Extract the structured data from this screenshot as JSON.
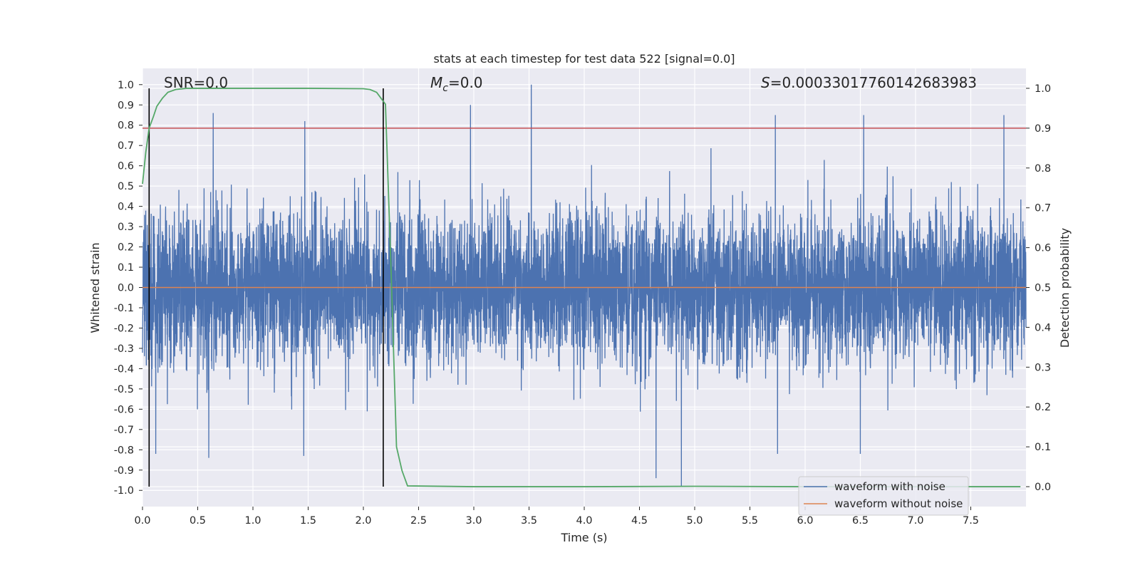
{
  "chart_data": {
    "type": "line",
    "title": "stats at each timestep for test data 522 [signal=0.0]",
    "xlabel": "Time (s)",
    "ylabel": "Whitened strain",
    "y2label": "Detection probability",
    "xlim": [
      0,
      8
    ],
    "ylim": [
      -1.08,
      1.08
    ],
    "y2lim": [
      -0.05,
      1.05
    ],
    "grid": true,
    "legend_position": "bottom-right",
    "x_ticks": [
      "0.0",
      "0.5",
      "1.0",
      "1.5",
      "2.0",
      "2.5",
      "3.0",
      "3.5",
      "4.0",
      "4.5",
      "5.0",
      "5.5",
      "6.0",
      "6.5",
      "7.0",
      "7.5"
    ],
    "y_ticks": [
      "1.0",
      "0.9",
      "0.8",
      "0.7",
      "0.6",
      "0.5",
      "0.4",
      "0.3",
      "0.2",
      "0.1",
      "0.0",
      "-0.1",
      "-0.2",
      "-0.3",
      "-0.4",
      "-0.5",
      "-0.6",
      "-0.7",
      "-0.8",
      "-0.9",
      "-1.0"
    ],
    "y2_ticks": [
      "1.0",
      "0.9",
      "0.8",
      "0.7",
      "0.6",
      "0.5",
      "0.4",
      "0.3",
      "0.2",
      "0.1",
      "0.0"
    ],
    "annotations": {
      "snr": "SNR=0.0",
      "mc_symbol": "M",
      "mc_sub": "c",
      "mc_value": "=0.0",
      "s_symbol": "S",
      "s_value": "=0.00033017760142683983"
    },
    "threshold": {
      "y2": 0.9,
      "color": "#c44e52"
    },
    "vertical_lines": [
      0.06,
      2.18
    ],
    "series": [
      {
        "name": "waveform with noise",
        "color": "#4c72b0",
        "noise_envelope": {
          "typical": 0.3,
          "max": 1.0,
          "min": -0.98
        },
        "spikes": [
          {
            "x": 0.64,
            "y": 0.86
          },
          {
            "x": 1.47,
            "y": 0.82
          },
          {
            "x": 2.97,
            "y": 0.9
          },
          {
            "x": 3.52,
            "y": 1.0
          },
          {
            "x": 5.73,
            "y": 0.85
          },
          {
            "x": 6.53,
            "y": 0.85
          },
          {
            "x": 7.8,
            "y": 0.85
          },
          {
            "x": 4.65,
            "y": -0.94
          },
          {
            "x": 4.88,
            "y": -0.98
          },
          {
            "x": 0.6,
            "y": -0.84
          },
          {
            "x": 1.46,
            "y": -0.83
          },
          {
            "x": 0.12,
            "y": -0.82
          },
          {
            "x": 6.5,
            "y": -0.82
          },
          {
            "x": 5.75,
            "y": -0.82
          }
        ]
      },
      {
        "name": "waveform without noise",
        "color": "#dd8452",
        "y": 0.0
      },
      {
        "name": "detection probability",
        "color": "#55a868",
        "axis": "right",
        "x": [
          0.0,
          0.03,
          0.06,
          0.1,
          0.13,
          0.18,
          0.23,
          0.3,
          0.4,
          0.6,
          1.0,
          1.5,
          2.0,
          2.06,
          2.12,
          2.16,
          2.2,
          2.25,
          2.3,
          2.35,
          2.4,
          3.0,
          4.0,
          5.0,
          6.0,
          7.0,
          7.95
        ],
        "y": [
          0.76,
          0.84,
          0.9,
          0.93,
          0.955,
          0.975,
          0.99,
          0.997,
          1.0,
          1.0,
          1.0,
          1.0,
          0.999,
          0.997,
          0.99,
          0.975,
          0.96,
          0.55,
          0.1,
          0.04,
          0.002,
          0.0,
          0.0,
          0.001,
          0.0,
          0.0,
          0.0
        ]
      }
    ]
  }
}
